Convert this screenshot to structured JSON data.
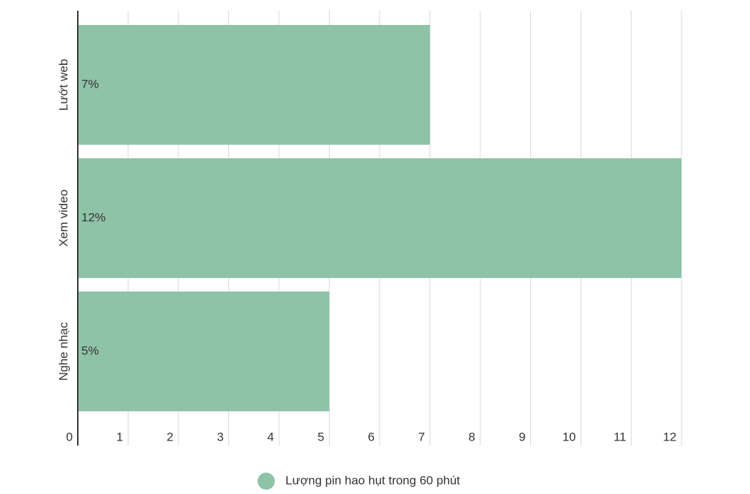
{
  "chart_data": {
    "type": "hbar",
    "categories": [
      "Lướt web",
      "Xem video",
      "Nghe nhạc"
    ],
    "series": [
      {
        "name": "Lượng pin hao hụt trong 60 phút",
        "color": "#8fc3a8",
        "values": [
          7,
          12,
          5
        ],
        "value_labels": [
          "7%",
          "12%",
          "5%"
        ]
      }
    ],
    "xlim": [
      0,
      12
    ],
    "xticks": [
      0,
      1,
      2,
      3,
      4,
      5,
      6,
      7,
      8,
      9,
      10,
      11,
      12
    ],
    "grid": true,
    "legend": "bottom"
  }
}
